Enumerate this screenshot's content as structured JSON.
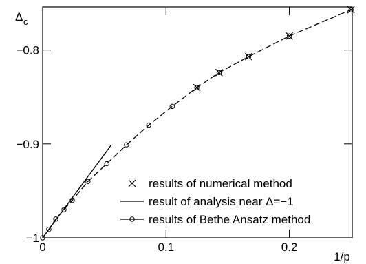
{
  "chart_data": {
    "type": "scatter",
    "y_label": "Δ",
    "y_label_sub": "c",
    "x_label": "1/p",
    "xlim": [
      0,
      0.251
    ],
    "ylim": [
      -1,
      -0.754
    ],
    "xticks": [
      0,
      0.1,
      0.2
    ],
    "yticks": [
      {
        "value": -1,
        "label": "−1"
      },
      {
        "value": -0.9,
        "label": "−0.9"
      },
      {
        "value": -0.8,
        "label": "−0.8"
      }
    ],
    "legend": "lower right",
    "series": [
      {
        "name": "results of numerical method",
        "color": "#000000",
        "marker": "x",
        "line": "none",
        "x": [
          0.125,
          0.143,
          0.167,
          0.2,
          0.25
        ],
        "values": [
          -0.84,
          -0.824,
          -0.807,
          -0.785,
          -0.757
        ]
      },
      {
        "name": "result of analysis near Δ=−1",
        "color": "#000000",
        "marker": "none",
        "line": "solid",
        "x": [
          0,
          0.0557
        ],
        "values": [
          -1,
          -0.901
        ]
      },
      {
        "name": "results of Bethe Ansatz method",
        "color": "#000000",
        "marker": "o",
        "line": "dashed",
        "x": [
          0,
          0.005,
          0.0106,
          0.0173,
          0.024,
          0.0367,
          0.052,
          0.068,
          0.086,
          0.105,
          0.125,
          0.143,
          0.167,
          0.2,
          0.25
        ],
        "values": [
          -1,
          -0.991,
          -0.98,
          -0.97,
          -0.96,
          -0.94,
          -0.921,
          -0.901,
          -0.88,
          -0.86,
          -0.84,
          -0.824,
          -0.807,
          -0.785,
          -0.757
        ]
      }
    ]
  }
}
